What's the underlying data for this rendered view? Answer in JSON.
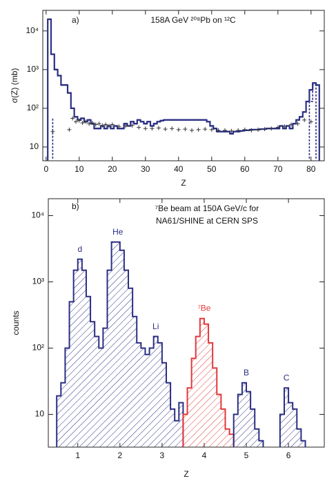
{
  "chart_data": [
    {
      "type": "step",
      "panel_label": "a)",
      "title": "158A GeV ²⁰⁸Pb on ¹²C",
      "xlabel": "Z",
      "ylabel": "σ(Z) (mb)",
      "log_y": true,
      "xlim": [
        -1,
        84
      ],
      "ylim": [
        4.4,
        34000
      ],
      "xticks": [
        0,
        10,
        20,
        30,
        40,
        50,
        60,
        70,
        80
      ],
      "yticks": [
        10,
        {
          "value": 100,
          "label": "10²"
        },
        {
          "value": 1000,
          "label": "10³"
        },
        {
          "value": 10000,
          "label": "10⁴"
        }
      ],
      "series": [
        {
          "style": "step",
          "color": "#2a2e82",
          "x": [
            1,
            2,
            3,
            4,
            5,
            6,
            7,
            8,
            9,
            10,
            11,
            12,
            13,
            14,
            15,
            16,
            17,
            18,
            19,
            20,
            21,
            22,
            23,
            24,
            25,
            26,
            27,
            28,
            29,
            30,
            31,
            32,
            33,
            34,
            35,
            36,
            37,
            38,
            39,
            40,
            41,
            42,
            43,
            44,
            45,
            46,
            47,
            48,
            49,
            50,
            51,
            52,
            53,
            54,
            55,
            56,
            57,
            58,
            59,
            60,
            61,
            62,
            63,
            64,
            65,
            66,
            67,
            68,
            69,
            70,
            71,
            72,
            73,
            74,
            75,
            76,
            77,
            78,
            79,
            80,
            81,
            82
          ],
          "values": [
            20000,
            2500,
            1000,
            700,
            400,
            400,
            250,
            100,
            60,
            50,
            55,
            45,
            50,
            40,
            30,
            30,
            35,
            30,
            35,
            30,
            35,
            30,
            30,
            40,
            35,
            45,
            40,
            50,
            45,
            40,
            45,
            35,
            40,
            45,
            48,
            50,
            50,
            50,
            50,
            50,
            50,
            50,
            50,
            50,
            50,
            50,
            50,
            50,
            45,
            35,
            30,
            25,
            25,
            25,
            25,
            22,
            25,
            25,
            26,
            27,
            27,
            28,
            28,
            28,
            29,
            29,
            30,
            30,
            30,
            30,
            35,
            30,
            35,
            30,
            40,
            50,
            60,
            80,
            150,
            300,
            450,
            400
          ]
        },
        {
          "style": "cross",
          "color": "#333333",
          "x": [
            2,
            7,
            8,
            9,
            10,
            11,
            12,
            13,
            14,
            15,
            16,
            17,
            18,
            19,
            20,
            22,
            24,
            26,
            28,
            30,
            32,
            34,
            36,
            38,
            40,
            42,
            44,
            46,
            48,
            50,
            52,
            54,
            56,
            58,
            60,
            62,
            64,
            66,
            68,
            70,
            72,
            74,
            76,
            78,
            80
          ],
          "values": [
            25,
            28,
            55,
            45,
            48,
            42,
            45,
            40,
            42,
            38,
            40,
            36,
            38,
            35,
            38,
            34,
            35,
            36,
            32,
            30,
            30,
            31,
            29,
            30,
            28,
            29,
            27,
            28,
            29,
            28,
            27,
            27,
            26,
            27,
            28,
            27,
            28,
            29,
            30,
            32,
            34,
            38,
            40,
            50,
            45
          ]
        },
        {
          "style": "dashed",
          "color": "#2a2e82",
          "x": [
            2,
            2
          ],
          "values": [
            5,
            55
          ]
        },
        {
          "style": "dashed",
          "color": "#2a2e82",
          "x": [
            79.5,
            79.5,
            80.5,
            80.5,
            81.5,
            81.5
          ],
          "values": [
            5,
            150,
            150,
            400,
            400,
            5
          ]
        }
      ]
    },
    {
      "type": "histogram",
      "panel_label": "b)",
      "title": [
        "⁷Be beam at 150A GeV/c for",
        "NA61/SHINE at CERN SPS"
      ],
      "xlabel": "Z",
      "ylabel": "counts",
      "log_y": true,
      "xlim": [
        0.3,
        6.85
      ],
      "ylim": [
        3.2,
        18000
      ],
      "xticks": [
        1,
        2,
        3,
        4,
        5,
        6
      ],
      "yticks": [
        10,
        {
          "value": 100,
          "label": "10²"
        },
        {
          "value": 1000,
          "label": "10³"
        },
        {
          "value": 10000,
          "label": "10⁴"
        }
      ],
      "series": [
        {
          "color": "#2a2e82",
          "bins": [
            0.5,
            0.6,
            0.7,
            0.8,
            0.9,
            1.0,
            1.1,
            1.2,
            1.3,
            1.4,
            1.5,
            1.6,
            1.7,
            1.8,
            1.9,
            2.0,
            2.1,
            2.2,
            2.3,
            2.4,
            2.5,
            2.6,
            2.7,
            2.8,
            2.9,
            3.0,
            3.1,
            3.2,
            3.3,
            3.4,
            3.5
          ],
          "values": [
            19,
            30,
            100,
            500,
            1500,
            2200,
            1500,
            600,
            250,
            150,
            100,
            200,
            1500,
            4000,
            4000,
            3000,
            1500,
            800,
            300,
            120,
            100,
            80,
            100,
            150,
            120,
            60,
            30,
            12,
            8,
            15
          ]
        },
        {
          "color": "#e2383a",
          "bins": [
            3.5,
            3.6,
            3.7,
            3.8,
            3.9,
            4.0,
            4.1,
            4.2,
            4.3,
            4.4,
            4.5,
            4.6,
            4.7
          ],
          "values": [
            10,
            25,
            70,
            150,
            280,
            230,
            120,
            50,
            20,
            12,
            6,
            5
          ]
        },
        {
          "color": "#2a2e82",
          "bins": [
            4.7,
            4.8,
            4.9,
            5.0,
            5.1,
            5.2,
            5.3,
            5.4
          ],
          "values": [
            10,
            20,
            30,
            22,
            12,
            6,
            4
          ]
        },
        {
          "color": "#2a2e82",
          "bins": [
            5.8,
            5.9,
            6.0,
            6.1,
            6.2,
            6.3,
            6.4
          ],
          "values": [
            10,
            25,
            15,
            12,
            6,
            4
          ]
        }
      ],
      "annotations": [
        {
          "text": "d",
          "x": 1.05,
          "y": 2200,
          "color": "#2a2e82"
        },
        {
          "text": "He",
          "x": 1.95,
          "y": 4000,
          "color": "#2a2e82"
        },
        {
          "text": "Li",
          "x": 2.85,
          "y": 150,
          "color": "#2a2e82"
        },
        {
          "text": "⁷Be",
          "x": 4.0,
          "y": 280,
          "color": "#e2383a"
        },
        {
          "text": "B",
          "x": 5.0,
          "y": 30,
          "color": "#2a2e82"
        },
        {
          "text": "C",
          "x": 5.95,
          "y": 25,
          "color": "#2a2e82"
        }
      ]
    }
  ]
}
